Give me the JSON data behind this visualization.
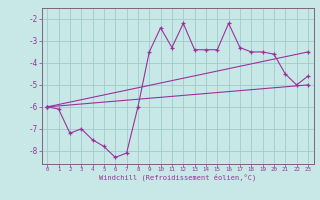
{
  "xlabel": "Windchill (Refroidissement éolien,°C)",
  "background_color": "#c8e8e8",
  "grid_color": "#a0cccc",
  "line_color": "#993399",
  "spine_color": "#806080",
  "x_ticks": [
    0,
    1,
    2,
    3,
    4,
    5,
    6,
    7,
    8,
    9,
    10,
    11,
    12,
    13,
    14,
    15,
    16,
    17,
    18,
    19,
    20,
    21,
    22,
    23
  ],
  "y_ticks": [
    -2,
    -3,
    -4,
    -5,
    -6,
    -7,
    -8
  ],
  "ylim": [
    -8.6,
    -1.5
  ],
  "xlim": [
    -0.5,
    23.5
  ],
  "series1": {
    "x": [
      0,
      1,
      2,
      3,
      4,
      5,
      6,
      7,
      8,
      9,
      10,
      11,
      12,
      13,
      14,
      15,
      16,
      17,
      18,
      19,
      20,
      21,
      22,
      23
    ],
    "y": [
      -6.0,
      -6.1,
      -7.2,
      -7.0,
      -7.5,
      -7.8,
      -8.3,
      -8.1,
      -6.0,
      -3.5,
      -2.4,
      -3.3,
      -2.2,
      -3.4,
      -3.4,
      -3.4,
      -2.2,
      -3.3,
      -3.5,
      -3.5,
      -3.6,
      -4.5,
      -5.0,
      -4.6
    ]
  },
  "series2": {
    "x": [
      0,
      23
    ],
    "y": [
      -6.0,
      -3.5
    ]
  },
  "series3": {
    "x": [
      0,
      23
    ],
    "y": [
      -6.0,
      -5.0
    ]
  }
}
